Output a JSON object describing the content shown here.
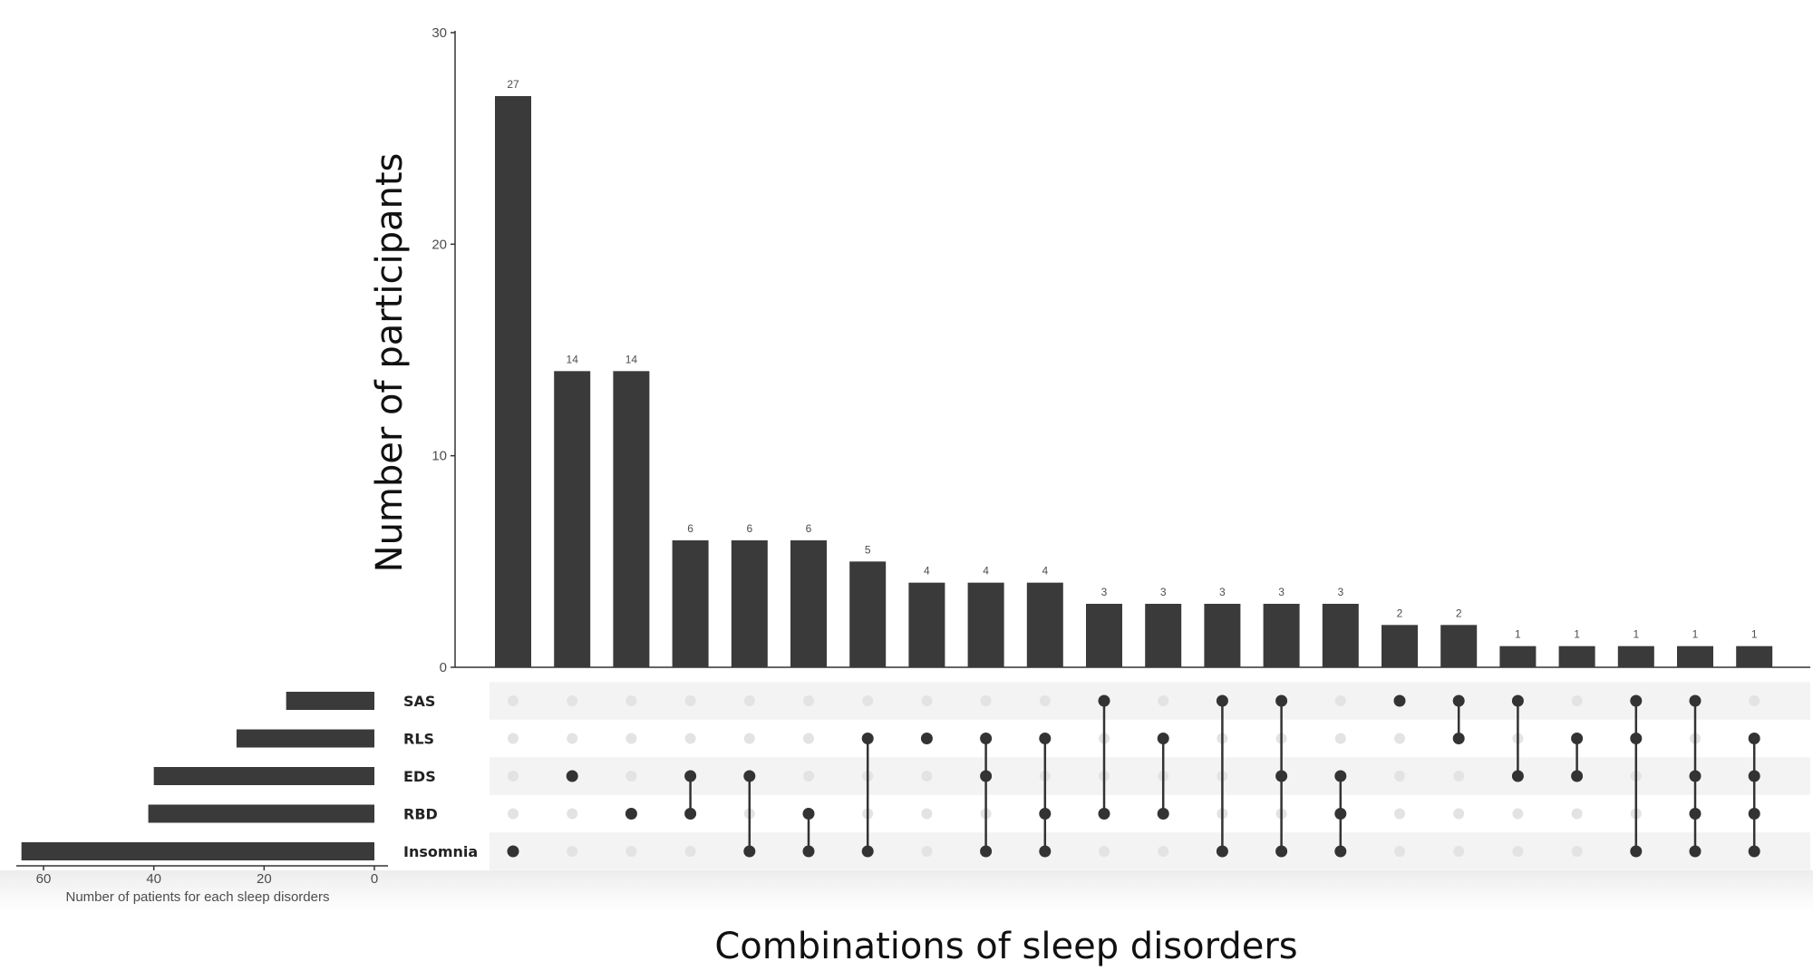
{
  "chart_data": {
    "type": "bar",
    "title": "",
    "ylabel": "Number of participants",
    "xlabel": "Combinations of sleep disorders",
    "ylim": [
      0,
      30
    ],
    "yticks": [
      "0",
      "10",
      "20",
      "30"
    ],
    "sets": [
      "SAS",
      "RLS",
      "EDS",
      "RBD",
      "Insomnia"
    ],
    "intersections": [
      {
        "members": [
          "Insomnia"
        ],
        "value": 27
      },
      {
        "members": [
          "EDS"
        ],
        "value": 14
      },
      {
        "members": [
          "RBD"
        ],
        "value": 14
      },
      {
        "members": [
          "EDS",
          "RBD"
        ],
        "value": 6
      },
      {
        "members": [
          "EDS",
          "Insomnia"
        ],
        "value": 6
      },
      {
        "members": [
          "RBD",
          "Insomnia"
        ],
        "value": 6
      },
      {
        "members": [
          "RLS",
          "Insomnia"
        ],
        "value": 5
      },
      {
        "members": [
          "RLS"
        ],
        "value": 4
      },
      {
        "members": [
          "RLS",
          "EDS",
          "Insomnia"
        ],
        "value": 4
      },
      {
        "members": [
          "RLS",
          "RBD",
          "Insomnia"
        ],
        "value": 4
      },
      {
        "members": [
          "SAS",
          "RBD"
        ],
        "value": 3
      },
      {
        "members": [
          "RLS",
          "RBD"
        ],
        "value": 3
      },
      {
        "members": [
          "SAS",
          "Insomnia"
        ],
        "value": 3
      },
      {
        "members": [
          "SAS",
          "EDS",
          "Insomnia"
        ],
        "value": 3
      },
      {
        "members": [
          "EDS",
          "RBD",
          "Insomnia"
        ],
        "value": 3
      },
      {
        "members": [
          "SAS"
        ],
        "value": 2
      },
      {
        "members": [
          "SAS",
          "RLS"
        ],
        "value": 2
      },
      {
        "members": [
          "SAS",
          "EDS"
        ],
        "value": 1
      },
      {
        "members": [
          "RLS",
          "EDS"
        ],
        "value": 1
      },
      {
        "members": [
          "SAS",
          "RLS",
          "Insomnia"
        ],
        "value": 1
      },
      {
        "members": [
          "SAS",
          "EDS",
          "RBD",
          "Insomnia"
        ],
        "value": 1
      },
      {
        "members": [
          "RLS",
          "EDS",
          "RBD",
          "Insomnia"
        ],
        "value": 1
      }
    ],
    "set_sizes": {
      "xlabel": "Number of patients for each sleep disorders",
      "xlim": [
        0,
        70
      ],
      "xticks": [
        "60",
        "40",
        "20",
        "0"
      ],
      "values": [
        16,
        25,
        40,
        41,
        64
      ]
    },
    "colors": {
      "bar": "#3a3a3a",
      "dot_active": "#333333",
      "dot_inactive": "#e3e3e3",
      "stripe": "#f3f3f3",
      "axis": "#333333"
    }
  }
}
